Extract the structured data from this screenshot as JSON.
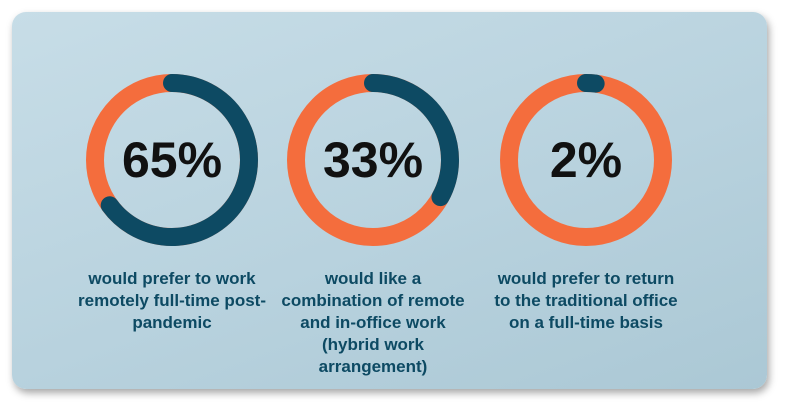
{
  "chart_data": [
    {
      "type": "gauge",
      "values": [
        65
      ],
      "value_labels": [
        "65%"
      ],
      "caption": "would prefer to work remotely full-time post-pandemic",
      "color": "#0d4a63",
      "track_color": "#f46d3d",
      "ylim": [
        0,
        100
      ]
    },
    {
      "type": "gauge",
      "values": [
        33
      ],
      "value_labels": [
        "33%"
      ],
      "caption": "would like a combination of remote and in-office work (hybrid work arrangement)",
      "color": "#0d4a63",
      "track_color": "#f46d3d",
      "ylim": [
        0,
        100
      ]
    },
    {
      "type": "gauge",
      "values": [
        2
      ],
      "value_labels": [
        "2%"
      ],
      "caption": "would prefer to return to the traditional office on a full-time basis",
      "color": "#0d4a63",
      "track_color": "#f46d3d",
      "ylim": [
        0,
        100
      ]
    }
  ]
}
